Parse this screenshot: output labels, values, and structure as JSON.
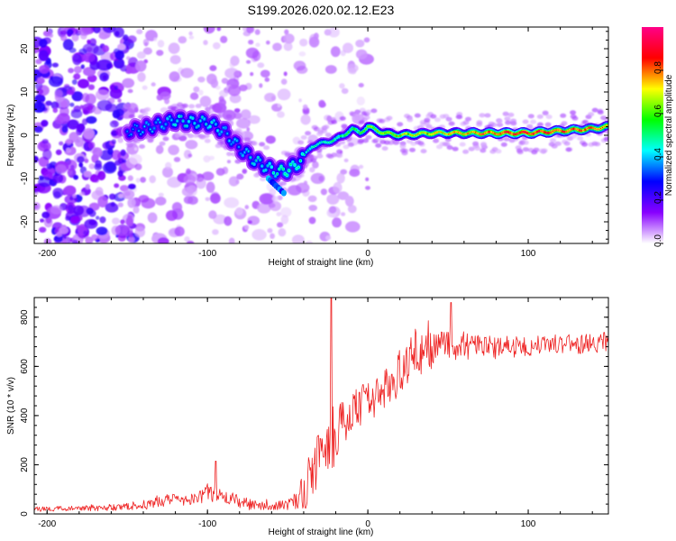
{
  "title": "S199.2026.020.02.12.E23",
  "chart_data": [
    {
      "type": "heatmap",
      "xlabel": "Height of straight line (km)",
      "ylabel": "Frequency (Hz)",
      "xlim": [
        -208,
        150
      ],
      "ylim": [
        -25,
        25
      ],
      "xticks": [
        -200,
        -100,
        0,
        100
      ],
      "yticks": [
        -20,
        -10,
        0,
        10,
        20
      ],
      "colorbar": {
        "label": "Normalized spectral amplitude",
        "range": [
          0,
          1
        ],
        "ticks": [
          "0.0",
          "0.2",
          "0.4",
          "0.6",
          "0.8"
        ],
        "colors": [
          "#ffffff",
          "#8800ff",
          "#0000ff",
          "#00ffff",
          "#00ff00",
          "#ffff00",
          "#ff0000",
          "#ff0088"
        ]
      },
      "ridge": {
        "x": [
          -150,
          -140,
          -130,
          -120,
          -110,
          -100,
          -90,
          -80,
          -70,
          -60,
          -55,
          -50,
          -45,
          -40,
          -35,
          -30,
          -25,
          -20,
          -15,
          -10,
          -5,
          0,
          10,
          20,
          40,
          60,
          80,
          100,
          120,
          140,
          150
        ],
        "freq": [
          1,
          1.5,
          2.5,
          3.5,
          3,
          3,
          1,
          -3,
          -6,
          -8,
          -8.5,
          -8,
          -7,
          -5,
          -2.5,
          -2,
          -1.5,
          -1,
          0,
          1.5,
          0.5,
          2,
          0.5,
          0,
          0.5,
          0.5,
          0.5,
          0.5,
          1,
          1.5,
          2
        ],
        "amplitude": [
          0.3,
          0.35,
          0.35,
          0.4,
          0.4,
          0.4,
          0.35,
          0.35,
          0.4,
          0.4,
          0.45,
          0.45,
          0.45,
          0.45,
          0.45,
          0.45,
          0.45,
          0.5,
          0.5,
          0.55,
          0.55,
          0.6,
          0.65,
          0.65,
          0.7,
          0.75,
          0.85,
          0.9,
          0.85,
          0.8,
          0.75
        ]
      }
    },
    {
      "type": "line",
      "xlabel": "Height of straight line (km)",
      "ylabel": "SNR (10 * v/v)",
      "xlim": [
        -208,
        150
      ],
      "ylim": [
        0,
        880
      ],
      "xticks": [
        -200,
        -100,
        0,
        100
      ],
      "yticks": [
        0,
        200,
        400,
        600,
        800
      ],
      "color": "#ee2222",
      "series": [
        {
          "name": "SNR",
          "x": [
            -208,
            -190,
            -170,
            -150,
            -140,
            -130,
            -120,
            -110,
            -100,
            -90,
            -80,
            -70,
            -60,
            -50,
            -45,
            -40,
            -35,
            -30,
            -25,
            -22,
            -20,
            -15,
            -10,
            -5,
            0,
            5,
            10,
            15,
            20,
            25,
            30,
            35,
            40,
            45,
            50,
            55,
            60,
            70,
            80,
            90,
            100,
            110,
            120,
            130,
            140,
            150
          ],
          "envelope": [
            20,
            22,
            24,
            30,
            40,
            55,
            55,
            65,
            85,
            70,
            50,
            35,
            30,
            40,
            60,
            90,
            170,
            230,
            270,
            300,
            320,
            380,
            410,
            440,
            450,
            470,
            500,
            530,
            580,
            620,
            650,
            660,
            670,
            680,
            690,
            690,
            685,
            680,
            675,
            680,
            685,
            690,
            695,
            690,
            695,
            700
          ],
          "noise": [
            10,
            10,
            12,
            15,
            20,
            25,
            25,
            30,
            40,
            30,
            25,
            20,
            15,
            25,
            40,
            80,
            110,
            120,
            120,
            120,
            110,
            90,
            90,
            85,
            80,
            80,
            85,
            85,
            90,
            90,
            95,
            90,
            80,
            75,
            70,
            65,
            60,
            50,
            45,
            45,
            45,
            40,
            40,
            40,
            40,
            40
          ],
          "annotations": [
            {
              "x": -95,
              "value": 215
            },
            {
              "x": -23,
              "value": 880
            },
            {
              "x": 52,
              "value": 860
            }
          ]
        }
      ]
    }
  ]
}
